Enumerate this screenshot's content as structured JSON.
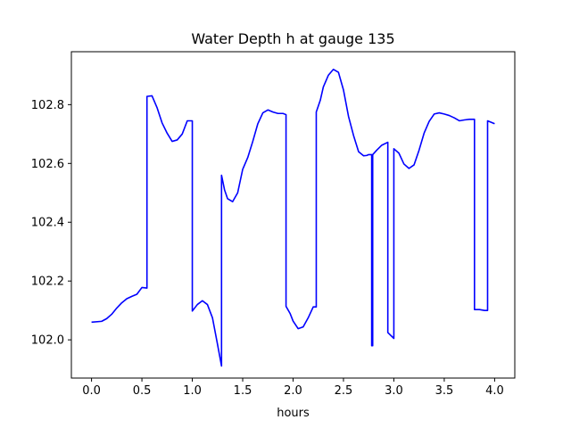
{
  "chart_data": {
    "type": "line",
    "title": "Water Depth h at gauge 135",
    "xlabel": "hours",
    "ylabel": "",
    "xlim": [
      -0.2,
      4.2
    ],
    "ylim": [
      101.87,
      102.98
    ],
    "xticks": [
      0.0,
      0.5,
      1.0,
      1.5,
      2.0,
      2.5,
      3.0,
      3.5,
      4.0
    ],
    "xtick_labels": [
      "0.0",
      "0.5",
      "1.0",
      "1.5",
      "2.0",
      "2.5",
      "3.0",
      "3.5",
      "4.0"
    ],
    "yticks": [
      102.0,
      102.2,
      102.4,
      102.6,
      102.8
    ],
    "ytick_labels": [
      "102.0",
      "102.2",
      "102.4",
      "102.6",
      "102.8"
    ],
    "grid": false,
    "legend": "none",
    "series": [
      {
        "color": "#0000ff",
        "x": [
          0.0,
          0.1,
          0.15,
          0.2,
          0.25,
          0.3,
          0.35,
          0.4,
          0.45,
          0.5,
          0.55,
          0.55,
          0.6,
          0.65,
          0.7,
          0.75,
          0.8,
          0.85,
          0.9,
          0.95,
          1.0,
          1.0,
          1.05,
          1.1,
          1.15,
          1.2,
          1.25,
          1.29,
          1.29,
          1.32,
          1.35,
          1.4,
          1.45,
          1.5,
          1.55,
          1.6,
          1.65,
          1.7,
          1.75,
          1.8,
          1.85,
          1.9,
          1.93,
          1.93,
          1.97,
          2.0,
          2.05,
          2.1,
          2.15,
          2.2,
          2.23,
          2.23,
          2.27,
          2.3,
          2.35,
          2.4,
          2.45,
          2.5,
          2.55,
          2.6,
          2.65,
          2.7,
          2.73,
          2.75,
          2.78,
          2.78,
          2.79,
          2.79,
          2.83,
          2.88,
          2.94,
          2.94,
          3.0,
          3.0,
          3.05,
          3.1,
          3.15,
          3.2,
          3.25,
          3.3,
          3.35,
          3.4,
          3.45,
          3.5,
          3.55,
          3.6,
          3.65,
          3.7,
          3.75,
          3.8,
          3.8,
          3.85,
          3.9,
          3.93,
          3.93,
          4.0
        ],
        "y": [
          102.06,
          102.063,
          102.072,
          102.087,
          102.108,
          102.126,
          102.14,
          102.148,
          102.155,
          102.178,
          102.176,
          102.828,
          102.83,
          102.79,
          102.738,
          102.703,
          102.675,
          102.68,
          102.7,
          102.745,
          102.745,
          102.098,
          102.12,
          102.133,
          102.12,
          102.075,
          101.985,
          101.911,
          102.56,
          102.51,
          102.48,
          102.47,
          102.5,
          102.58,
          102.62,
          102.675,
          102.735,
          102.772,
          102.782,
          102.775,
          102.77,
          102.77,
          102.766,
          102.114,
          102.09,
          102.064,
          102.038,
          102.044,
          102.075,
          102.112,
          102.112,
          102.775,
          102.815,
          102.86,
          102.9,
          102.92,
          102.91,
          102.85,
          102.76,
          102.695,
          102.64,
          102.626,
          102.627,
          102.63,
          102.63,
          101.98,
          101.98,
          102.63,
          102.645,
          102.662,
          102.672,
          102.025,
          102.005,
          102.65,
          102.635,
          102.598,
          102.583,
          102.595,
          102.645,
          102.703,
          102.743,
          102.768,
          102.772,
          102.768,
          102.763,
          102.755,
          102.745,
          102.748,
          102.75,
          102.75,
          102.103,
          102.103,
          102.1,
          102.1,
          102.745,
          102.735
        ]
      }
    ]
  }
}
